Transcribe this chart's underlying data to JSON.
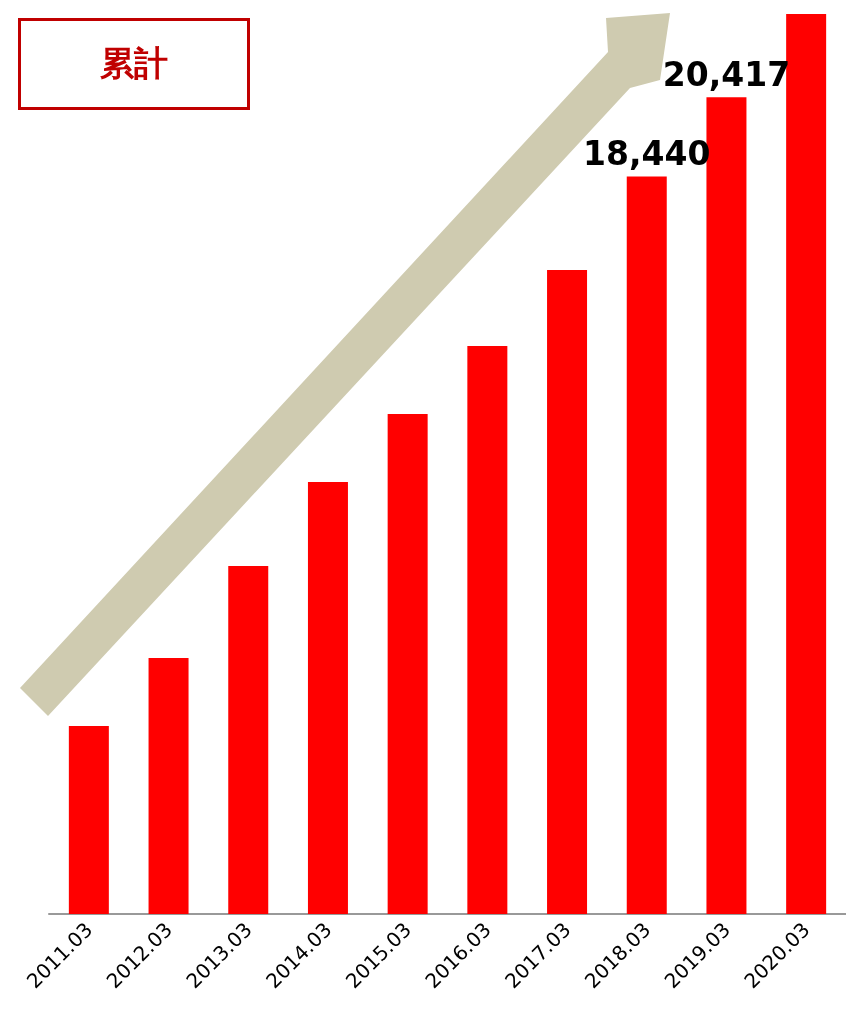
{
  "chart_data": {
    "type": "bar",
    "title": "累計",
    "categories": [
      "2011.03",
      "2012.03",
      "2013.03",
      "2014.03",
      "2015.03",
      "2016.03",
      "2017.03",
      "2018.03",
      "2019.03",
      "2020.03"
    ],
    "values": [
      4700,
      6400,
      8700,
      10800,
      12500,
      14200,
      16100,
      18440,
      20417,
      22500
    ],
    "value_labels": [
      null,
      null,
      null,
      null,
      null,
      null,
      null,
      "18,440",
      "20,417",
      null
    ],
    "color": "#ff0000"
  }
}
